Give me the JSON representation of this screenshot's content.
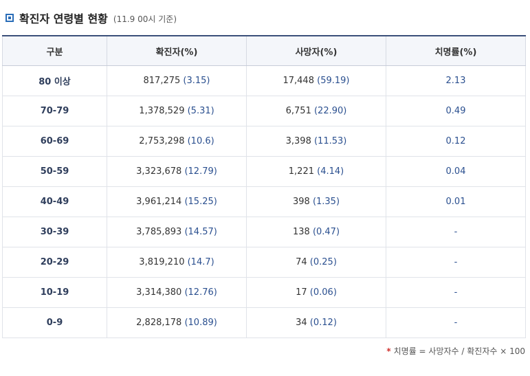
{
  "header": {
    "title": "확진자 연령별 현황",
    "basis": "(11.9 00시 기준)"
  },
  "table": {
    "columns": [
      "구분",
      "확진자(%)",
      "사망자(%)",
      "치명률(%)"
    ],
    "rows": [
      {
        "group": "80 이상",
        "confirmed": "817,275",
        "confirmed_pct": "(3.15)",
        "deaths": "17,448",
        "deaths_pct": "(59.19)",
        "fatality": "2.13"
      },
      {
        "group": "70-79",
        "confirmed": "1,378,529",
        "confirmed_pct": "(5.31)",
        "deaths": "6,751",
        "deaths_pct": "(22.90)",
        "fatality": "0.49"
      },
      {
        "group": "60-69",
        "confirmed": "2,753,298",
        "confirmed_pct": "(10.6)",
        "deaths": "3,398",
        "deaths_pct": "(11.53)",
        "fatality": "0.12"
      },
      {
        "group": "50-59",
        "confirmed": "3,323,678",
        "confirmed_pct": "(12.79)",
        "deaths": "1,221",
        "deaths_pct": "(4.14)",
        "fatality": "0.04"
      },
      {
        "group": "40-49",
        "confirmed": "3,961,214",
        "confirmed_pct": "(15.25)",
        "deaths": "398",
        "deaths_pct": "(1.35)",
        "fatality": "0.01"
      },
      {
        "group": "30-39",
        "confirmed": "3,785,893",
        "confirmed_pct": "(14.57)",
        "deaths": "138",
        "deaths_pct": "(0.47)",
        "fatality": "-"
      },
      {
        "group": "20-29",
        "confirmed": "3,819,210",
        "confirmed_pct": "(14.7)",
        "deaths": "74",
        "deaths_pct": "(0.25)",
        "fatality": "-"
      },
      {
        "group": "10-19",
        "confirmed": "3,314,380",
        "confirmed_pct": "(12.76)",
        "deaths": "17",
        "deaths_pct": "(0.06)",
        "fatality": "-"
      },
      {
        "group": "0-9",
        "confirmed": "2,828,178",
        "confirmed_pct": "(10.89)",
        "deaths": "34",
        "deaths_pct": "(0.12)",
        "fatality": "-"
      }
    ]
  },
  "footnote": {
    "marker": "*",
    "text": "치명률 = 사망자수 / 확진자수 × 100"
  },
  "colors": {
    "accent": "#2a6db8",
    "header_border": "#3a4f7a",
    "value_blue": "#2a4f8f",
    "footnote_star": "#d0312d"
  }
}
